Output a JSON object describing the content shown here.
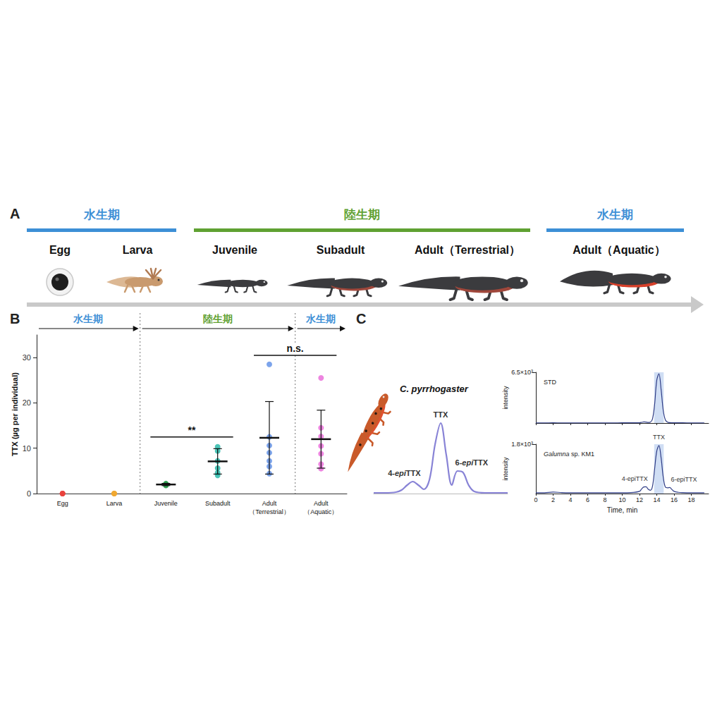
{
  "panel_a": {
    "letter": "A",
    "phases": [
      {
        "label": "水生期",
        "color": "#3d8fd6",
        "stages": [
          "Egg",
          "Larva"
        ]
      },
      {
        "label": "陸生期",
        "color": "#5fa132",
        "stages": [
          "Juvenile",
          "Subadult",
          "Adult（Terrestrial）"
        ]
      },
      {
        "label": "水生期",
        "color": "#3d8fd6",
        "stages": [
          "Adult（Aquatic）"
        ]
      }
    ]
  },
  "chart_data": [
    {
      "letter": "B",
      "type": "scatter",
      "y_label": "TTX (µg per individual)",
      "categories": [
        "Egg",
        "Larva",
        "Juvenile",
        "Subadult",
        "Adult（Terrestrial）",
        "Adult（Aquatic）"
      ],
      "colors": [
        "#e8413c",
        "#f0a830",
        "#2e9e4f",
        "#1fb5a5",
        "#5b8de6",
        "#e866d8"
      ],
      "points": [
        [
          0,
          0,
          0
        ],
        [
          0,
          0,
          0
        ],
        [
          1.8,
          2,
          2.1,
          2.2,
          1.9
        ],
        [
          10.3,
          9.4,
          7.2,
          5.6,
          4.6,
          4
        ],
        [
          28.5,
          12.5,
          10.6,
          9,
          7.2,
          6,
          4.4
        ],
        [
          25.5,
          14.5,
          12.6,
          10.5,
          8.8,
          6.5,
          5.5
        ]
      ],
      "mean": [
        null,
        null,
        2,
        7.1,
        12.3,
        12
      ],
      "error": [
        null,
        null,
        0.25,
        2.8,
        8,
        6.4
      ],
      "ylim": [
        0,
        35
      ],
      "yticks": [
        0,
        10,
        20,
        30
      ],
      "grid": false,
      "phases": [
        {
          "label": "水生期",
          "color": "#3d8fd6",
          "from": "Egg",
          "to": "Larva"
        },
        {
          "label": "陸生期",
          "color": "#5fa132",
          "from": "Juvenile",
          "to": "Adult（Terrestrial）"
        },
        {
          "label": "水生期",
          "color": "#3d8fd6",
          "from": "Adult（Aquatic）",
          "to": "Adult（Aquatic）"
        }
      ],
      "comparisons": [
        {
          "from": "Juvenile",
          "to": "Subadult",
          "y": 12.5,
          "label": "**"
        },
        {
          "from": "Adult（Terrestrial）",
          "to": "Adult（Aquatic）",
          "y": 30.5,
          "label": "n.s."
        }
      ]
    },
    {
      "letter": "C",
      "type": "line",
      "species": "C. pyrrhogaster",
      "x": [
        11,
        11.5,
        12,
        12.25,
        12.5,
        12.75,
        13,
        13.25,
        13.5,
        13.75,
        14,
        14.25,
        14.5,
        14.75,
        15,
        15.25,
        15.5,
        16,
        16.5,
        17
      ],
      "values": [
        1,
        1,
        2,
        5,
        12,
        17,
        12,
        6,
        20,
        70,
        100,
        55,
        12,
        32,
        30,
        12,
        3,
        1,
        1,
        1
      ],
      "xlim": [
        11,
        17
      ],
      "ylim": [
        0,
        110
      ],
      "tick_labels": false,
      "color": "#8883d6",
      "peaks": [
        {
          "label": "4-epiTTX",
          "x": 12.75
        },
        {
          "label": "TTX",
          "x": 14
        },
        {
          "label": "6-epiTTX",
          "x": 14.75
        }
      ]
    },
    {
      "type": "line",
      "title": "STD",
      "x": [
        0,
        1,
        2,
        3,
        4,
        5,
        6,
        7,
        8,
        9,
        10,
        11,
        12,
        12.25,
        12.5,
        12.75,
        13,
        13.25,
        13.5,
        13.75,
        14,
        14.25,
        14.5,
        14.75,
        15,
        15.25,
        15.5,
        15.75,
        16,
        16.5,
        17,
        18,
        19,
        19.5
      ],
      "values": [
        20,
        20,
        25,
        20,
        20,
        20,
        20,
        20,
        20,
        20,
        25,
        25,
        40,
        90,
        150,
        130,
        70,
        110,
        500,
        2400,
        5500,
        6300,
        4300,
        1600,
        380,
        110,
        50,
        35,
        30,
        25,
        25,
        20,
        20,
        20
      ],
      "xlim": [
        0,
        20
      ],
      "ylim": [
        0,
        6500
      ],
      "xticks": [
        0,
        2,
        4,
        6,
        8,
        10,
        12,
        14,
        16,
        18
      ],
      "yticks": [
        {
          "value": 6500,
          "label": "6.5×10³"
        }
      ],
      "y_label": "intensity",
      "tick_labels": "y",
      "highlight": [
        13.7,
        14.8
      ],
      "color": "#2f3d86"
    },
    {
      "type": "line",
      "title": "Galumna sp. KM1",
      "x": [
        0,
        1,
        2,
        3,
        4,
        5,
        6,
        7,
        8,
        9,
        10,
        11,
        12,
        12.25,
        12.5,
        12.75,
        13,
        13.25,
        13.5,
        13.75,
        14,
        14.25,
        14.5,
        14.75,
        15,
        15.25,
        15.5,
        15.75,
        16,
        16.5,
        17,
        18,
        19,
        19.5
      ],
      "values": [
        30,
        30,
        55,
        35,
        30,
        30,
        30,
        30,
        30,
        30,
        30,
        35,
        80,
        170,
        240,
        250,
        160,
        120,
        260,
        900,
        1550,
        1750,
        1300,
        600,
        230,
        210,
        220,
        150,
        80,
        45,
        35,
        30,
        30,
        30
      ],
      "xlim": [
        0,
        20
      ],
      "ylim": [
        0,
        1800
      ],
      "xticks": [
        0,
        2,
        4,
        6,
        8,
        10,
        12,
        14,
        16,
        18
      ],
      "yticks": [
        {
          "value": 1800,
          "label": "1.8×10³"
        }
      ],
      "x_label": "Time, min",
      "y_label": "intensity",
      "highlight": [
        13.7,
        14.8
      ],
      "color": "#2f3d86",
      "peaks": [
        {
          "label": "4-epiTTX",
          "x": 12.75
        },
        {
          "label": "TTX",
          "x": 14.25
        },
        {
          "label": "6-epiTTX",
          "x": 15.5
        }
      ]
    }
  ]
}
